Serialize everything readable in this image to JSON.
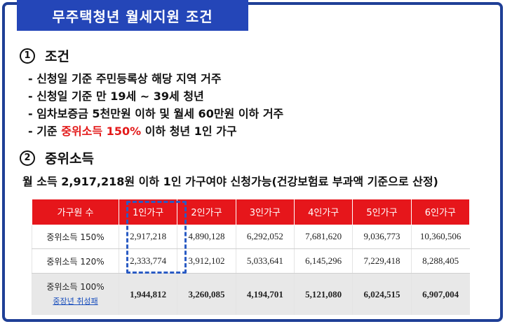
{
  "title": "무주택청년 월세지원 조건",
  "section1": {
    "number": "①",
    "heading": "조건",
    "items": [
      "- 신청일 기준 주민등록상 해당 지역 거주",
      "- 신청일 기준 만 19세 ~ 39세 청년",
      "- 임차보증금 5천만원 이하 및 월세 60만원 이하 거주"
    ],
    "item4": {
      "prefix": "- 기준 ",
      "highlight": "중위소득 150%",
      "suffix": " 이하 청년 1인 가구"
    }
  },
  "section2": {
    "number": "②",
    "heading": "중위소득",
    "income_line": "월 소득 2,917,218원 이하 1인 가구여야 신청가능(건강보험료 부과액 기준으로 산정)"
  },
  "table": {
    "headers": [
      "가구원 수",
      "1인가구",
      "2인가구",
      "3인가구",
      "4인가구",
      "5인가구",
      "6인가구"
    ],
    "rows": [
      {
        "label": "중위소득 150%",
        "values": [
          "2,917,218",
          "4,890,128",
          "6,292,052",
          "7,681,620",
          "9,036,773",
          "10,360,506"
        ]
      },
      {
        "label": "중위소득 120%",
        "values": [
          "2,333,774",
          "3,912,102",
          "5,033,641",
          "6,145,296",
          "7,229,418",
          "8,288,405"
        ]
      },
      {
        "label": "중위소득 100%",
        "link": "중장년 취성패",
        "values": [
          "1,944,812",
          "3,260,085",
          "4,194,701",
          "5,121,080",
          "6,024,515",
          "6,907,004"
        ]
      }
    ]
  },
  "colors": {
    "title_bg": "#2446b8",
    "header_red": "#e6161b",
    "highlight_red": "#e31919",
    "frame_blue": "#1f3f96"
  }
}
